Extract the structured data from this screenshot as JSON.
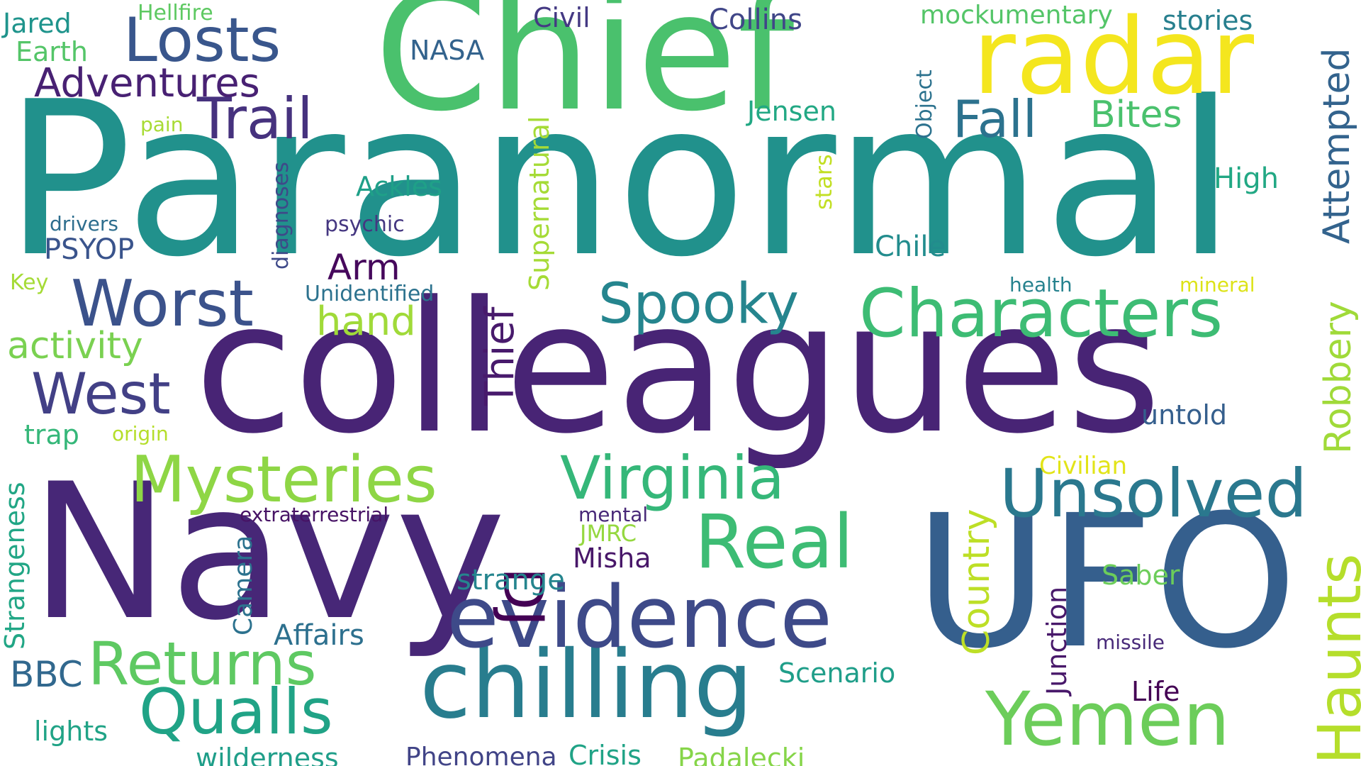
{
  "word_cloud": {
    "words": [
      {
        "text": "Paranormal",
        "color": "#21918c"
      },
      {
        "text": "colleagues",
        "color": "#482475"
      },
      {
        "text": "Navy",
        "color": "#472777"
      },
      {
        "text": "UFO",
        "color": "#355f8d"
      },
      {
        "text": "Chief",
        "color": "#4ac16d"
      },
      {
        "text": "radar",
        "color": "#f4e61e"
      },
      {
        "text": "chilling",
        "color": "#287d8e"
      },
      {
        "text": "evidence",
        "color": "#3e4a89"
      },
      {
        "text": "Yemen",
        "color": "#6ccd5a"
      },
      {
        "text": "Real",
        "color": "#3dbc74"
      },
      {
        "text": "Characters",
        "color": "#3dbc74"
      },
      {
        "text": "Unsolved",
        "color": "#2a788e"
      },
      {
        "text": "Mysteries",
        "color": "#8ed645"
      },
      {
        "text": "Virginia",
        "color": "#35b779"
      },
      {
        "text": "Qualls",
        "color": "#20a386"
      },
      {
        "text": "Returns",
        "color": "#5ec962"
      },
      {
        "text": "Worst",
        "color": "#3b528b"
      },
      {
        "text": "Losts",
        "color": "#39568c"
      },
      {
        "text": "Trail",
        "color": "#46327e"
      },
      {
        "text": "Spooky",
        "color": "#25858e"
      },
      {
        "text": "West",
        "color": "#424086"
      },
      {
        "text": "Fall",
        "color": "#2c728e"
      },
      {
        "text": "Adventures",
        "color": "#482173"
      },
      {
        "text": "Haunts",
        "color": "#b5de2b"
      },
      {
        "text": "DJ",
        "color": "#440154"
      },
      {
        "text": "Thief",
        "color": "#481a6c"
      },
      {
        "text": "activity",
        "color": "#7ad151"
      },
      {
        "text": "hand",
        "color": "#a0da39"
      },
      {
        "text": "Arm",
        "color": "#46085c"
      },
      {
        "text": "Bites",
        "color": "#4ac16d"
      },
      {
        "text": "Attempted",
        "color": "#33638d"
      },
      {
        "text": "Robbery",
        "color": "#a0da39"
      },
      {
        "text": "Country",
        "color": "#bddf26"
      },
      {
        "text": "Jensen",
        "color": "#22a884"
      },
      {
        "text": "Ackles",
        "color": "#1fa088"
      },
      {
        "text": "Junction",
        "color": "#48186a"
      },
      {
        "text": "untold",
        "color": "#355f8d"
      },
      {
        "text": "BBC",
        "color": "#31688e"
      },
      {
        "text": "Affairs",
        "color": "#2d708e"
      },
      {
        "text": "Scenario",
        "color": "#1f9e89"
      },
      {
        "text": "strange",
        "color": "#25858e"
      },
      {
        "text": "Supernatural",
        "color": "#a5db36"
      },
      {
        "text": "Misha",
        "color": "#481769"
      },
      {
        "text": "Saber",
        "color": "#6ccd5a"
      },
      {
        "text": "Life",
        "color": "#440154"
      },
      {
        "text": "lights",
        "color": "#20a386"
      },
      {
        "text": "wilderness",
        "color": "#1f9e89"
      },
      {
        "text": "Phenomena",
        "color": "#414487"
      },
      {
        "text": "Crisis",
        "color": "#20a386"
      },
      {
        "text": "Padalecki",
        "color": "#86d549"
      },
      {
        "text": "High",
        "color": "#22a884"
      },
      {
        "text": "Chile",
        "color": "#228c8d"
      },
      {
        "text": "Strangeness",
        "color": "#21a685"
      },
      {
        "text": "Camera",
        "color": "#2c728e"
      },
      {
        "text": "Jared",
        "color": "#1f948c"
      },
      {
        "text": "Earth",
        "color": "#54c568"
      },
      {
        "text": "Hellfire",
        "color": "#5ec962"
      },
      {
        "text": "Civil",
        "color": "#443983"
      },
      {
        "text": "Collins",
        "color": "#404688"
      },
      {
        "text": "NASA",
        "color": "#33638d"
      },
      {
        "text": "mockumentary",
        "color": "#54c568"
      },
      {
        "text": "stories",
        "color": "#277f8e"
      },
      {
        "text": "Object",
        "color": "#2c728e"
      },
      {
        "text": "pain",
        "color": "#a8db34"
      },
      {
        "text": "diagnoses",
        "color": "#3e4989"
      },
      {
        "text": "drivers",
        "color": "#2e6e8e"
      },
      {
        "text": "psychic",
        "color": "#453781"
      },
      {
        "text": "stars",
        "color": "#c2df23"
      },
      {
        "text": "PSYOP",
        "color": "#3a548c"
      },
      {
        "text": "Key",
        "color": "#a5db36"
      },
      {
        "text": "Unidentified",
        "color": "#2c728e"
      },
      {
        "text": "health",
        "color": "#26828e"
      },
      {
        "text": "mineral",
        "color": "#dde318"
      },
      {
        "text": "trap",
        "color": "#35b779"
      },
      {
        "text": "origin",
        "color": "#b5de2b"
      },
      {
        "text": "extraterrestrial",
        "color": "#471365"
      },
      {
        "text": "mental",
        "color": "#482878"
      },
      {
        "text": "JMRC",
        "color": "#95d840"
      },
      {
        "text": "Civilian",
        "color": "#e2e418"
      },
      {
        "text": "missile",
        "color": "#482979"
      }
    ]
  }
}
